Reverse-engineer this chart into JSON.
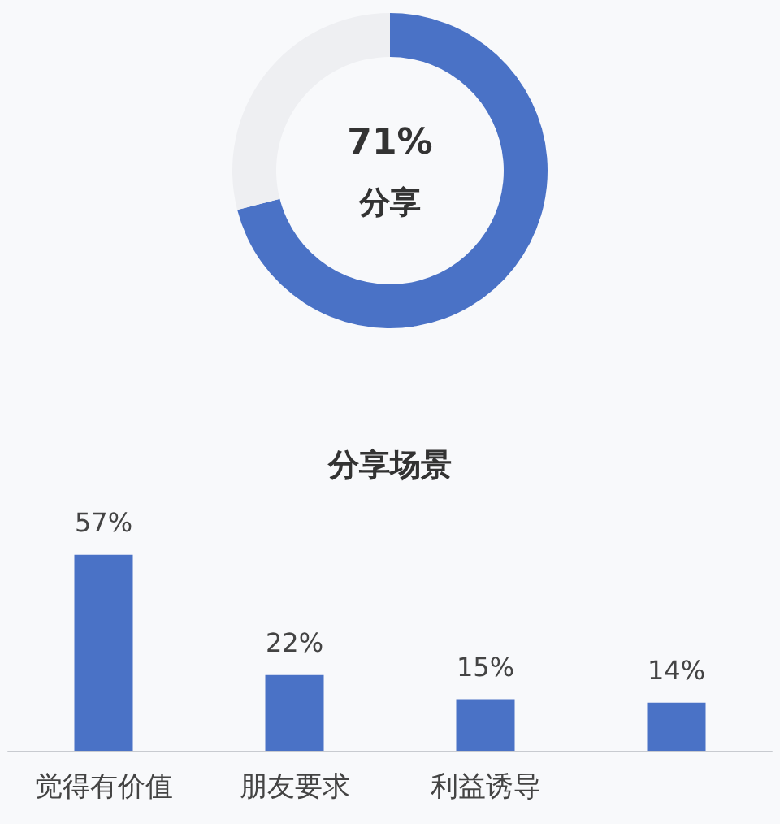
{
  "chart_data": [
    {
      "type": "donut",
      "categories": [
        "分享",
        null
      ],
      "values": [
        71,
        29
      ],
      "colors": [
        "#4a72c6",
        "#eeeff2"
      ],
      "value_labels": [
        "71%",
        null
      ]
    },
    {
      "type": "bar",
      "title": "分享场景",
      "categories": [
        "觉得有价值",
        "朋友要求",
        "利益诱导",
        null
      ],
      "values": [
        57,
        22,
        15,
        14
      ],
      "color": "#4a72c6",
      "value_labels": [
        "57%",
        "22%",
        "15%",
        "14%"
      ],
      "tick_labels": "x"
    }
  ]
}
